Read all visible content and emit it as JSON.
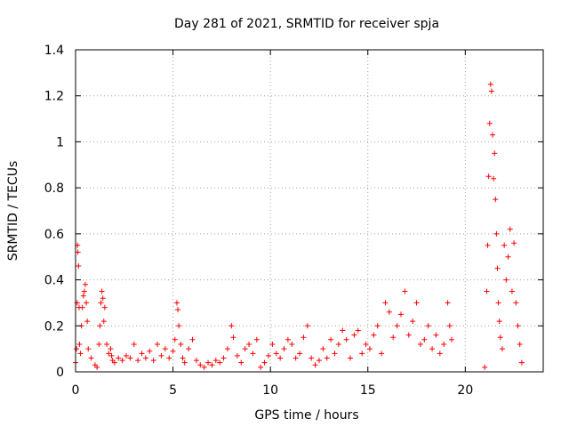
{
  "chart_data": {
    "type": "scatter",
    "title": "Day 281 of 2021, SRMTID for receiver spja",
    "xlabel": "GPS time / hours",
    "ylabel": "SRMTID / TECUs",
    "xlim": [
      0,
      24
    ],
    "ylim": [
      0,
      1.4
    ],
    "xticks": [
      0,
      5,
      10,
      15,
      20
    ],
    "yticks": [
      0,
      0.2,
      0.4,
      0.6,
      0.8,
      1,
      1.2,
      1.4
    ],
    "ytick_labels": [
      "0",
      "0.2",
      "0.4",
      "0.6",
      "0.8",
      "1",
      "1.2",
      "1.4"
    ],
    "grid": true,
    "marker": "+",
    "color": "#ff0000",
    "series": [
      {
        "name": "SRMTID",
        "points": [
          [
            0.0,
            0.04
          ],
          [
            0.05,
            0.1
          ],
          [
            0.08,
            0.3
          ],
          [
            0.1,
            0.55
          ],
          [
            0.12,
            0.52
          ],
          [
            0.15,
            0.46
          ],
          [
            0.18,
            0.28
          ],
          [
            0.2,
            0.12
          ],
          [
            0.25,
            0.08
          ],
          [
            0.3,
            0.2
          ],
          [
            0.35,
            0.28
          ],
          [
            0.4,
            0.33
          ],
          [
            0.45,
            0.35
          ],
          [
            0.5,
            0.38
          ],
          [
            0.55,
            0.3
          ],
          [
            0.6,
            0.22
          ],
          [
            0.65,
            0.1
          ],
          [
            0.8,
            0.06
          ],
          [
            1.0,
            0.03
          ],
          [
            1.1,
            0.02
          ],
          [
            1.2,
            0.12
          ],
          [
            1.25,
            0.2
          ],
          [
            1.3,
            0.3
          ],
          [
            1.35,
            0.35
          ],
          [
            1.4,
            0.32
          ],
          [
            1.45,
            0.22
          ],
          [
            1.5,
            0.28
          ],
          [
            1.6,
            0.12
          ],
          [
            1.7,
            0.08
          ],
          [
            1.8,
            0.1
          ],
          [
            1.85,
            0.07
          ],
          [
            1.9,
            0.05
          ],
          [
            2.0,
            0.04
          ],
          [
            2.2,
            0.06
          ],
          [
            2.4,
            0.05
          ],
          [
            2.6,
            0.07
          ],
          [
            2.8,
            0.06
          ],
          [
            3.0,
            0.12
          ],
          [
            3.2,
            0.05
          ],
          [
            3.4,
            0.08
          ],
          [
            3.6,
            0.06
          ],
          [
            3.8,
            0.09
          ],
          [
            4.0,
            0.05
          ],
          [
            4.2,
            0.12
          ],
          [
            4.4,
            0.07
          ],
          [
            4.6,
            0.1
          ],
          [
            4.8,
            0.06
          ],
          [
            5.0,
            0.09
          ],
          [
            5.1,
            0.14
          ],
          [
            5.2,
            0.3
          ],
          [
            5.25,
            0.27
          ],
          [
            5.3,
            0.2
          ],
          [
            5.4,
            0.12
          ],
          [
            5.5,
            0.06
          ],
          [
            5.6,
            0.04
          ],
          [
            5.8,
            0.1
          ],
          [
            6.0,
            0.14
          ],
          [
            6.2,
            0.05
          ],
          [
            6.4,
            0.03
          ],
          [
            6.6,
            0.02
          ],
          [
            6.8,
            0.04
          ],
          [
            7.0,
            0.03
          ],
          [
            7.2,
            0.05
          ],
          [
            7.4,
            0.04
          ],
          [
            7.6,
            0.06
          ],
          [
            7.8,
            0.1
          ],
          [
            8.0,
            0.2
          ],
          [
            8.1,
            0.15
          ],
          [
            8.3,
            0.07
          ],
          [
            8.5,
            0.04
          ],
          [
            8.7,
            0.1
          ],
          [
            8.9,
            0.12
          ],
          [
            9.1,
            0.08
          ],
          [
            9.3,
            0.14
          ],
          [
            9.5,
            0.02
          ],
          [
            9.7,
            0.04
          ],
          [
            9.9,
            0.07
          ],
          [
            10.1,
            0.12
          ],
          [
            10.3,
            0.08
          ],
          [
            10.5,
            0.06
          ],
          [
            10.7,
            0.1
          ],
          [
            10.9,
            0.14
          ],
          [
            11.1,
            0.12
          ],
          [
            11.3,
            0.06
          ],
          [
            11.5,
            0.08
          ],
          [
            11.7,
            0.15
          ],
          [
            11.9,
            0.2
          ],
          [
            12.1,
            0.06
          ],
          [
            12.3,
            0.03
          ],
          [
            12.5,
            0.05
          ],
          [
            12.7,
            0.1
          ],
          [
            12.9,
            0.06
          ],
          [
            13.1,
            0.14
          ],
          [
            13.3,
            0.08
          ],
          [
            13.5,
            0.12
          ],
          [
            13.7,
            0.18
          ],
          [
            13.9,
            0.14
          ],
          [
            14.1,
            0.06
          ],
          [
            14.3,
            0.16
          ],
          [
            14.5,
            0.18
          ],
          [
            14.7,
            0.08
          ],
          [
            14.9,
            0.12
          ],
          [
            15.1,
            0.1
          ],
          [
            15.3,
            0.16
          ],
          [
            15.5,
            0.2
          ],
          [
            15.7,
            0.08
          ],
          [
            15.9,
            0.3
          ],
          [
            16.1,
            0.26
          ],
          [
            16.3,
            0.15
          ],
          [
            16.5,
            0.2
          ],
          [
            16.7,
            0.25
          ],
          [
            16.9,
            0.35
          ],
          [
            17.1,
            0.16
          ],
          [
            17.3,
            0.22
          ],
          [
            17.5,
            0.3
          ],
          [
            17.7,
            0.12
          ],
          [
            17.9,
            0.14
          ],
          [
            18.1,
            0.2
          ],
          [
            18.3,
            0.1
          ],
          [
            18.5,
            0.16
          ],
          [
            18.7,
            0.08
          ],
          [
            18.9,
            0.12
          ],
          [
            19.1,
            0.3
          ],
          [
            19.2,
            0.2
          ],
          [
            19.3,
            0.14
          ],
          [
            21.0,
            0.02
          ],
          [
            21.1,
            0.35
          ],
          [
            21.15,
            0.55
          ],
          [
            21.2,
            0.85
          ],
          [
            21.25,
            1.08
          ],
          [
            21.3,
            1.25
          ],
          [
            21.35,
            1.22
          ],
          [
            21.4,
            1.03
          ],
          [
            21.45,
            0.84
          ],
          [
            21.5,
            0.95
          ],
          [
            21.55,
            0.75
          ],
          [
            21.6,
            0.6
          ],
          [
            21.65,
            0.45
          ],
          [
            21.7,
            0.3
          ],
          [
            21.75,
            0.22
          ],
          [
            21.8,
            0.15
          ],
          [
            21.9,
            0.1
          ],
          [
            22.0,
            0.55
          ],
          [
            22.1,
            0.4
          ],
          [
            22.2,
            0.5
          ],
          [
            22.3,
            0.62
          ],
          [
            22.4,
            0.35
          ],
          [
            22.5,
            0.56
          ],
          [
            22.6,
            0.3
          ],
          [
            22.7,
            0.2
          ],
          [
            22.8,
            0.12
          ],
          [
            22.9,
            0.04
          ]
        ]
      }
    ]
  }
}
